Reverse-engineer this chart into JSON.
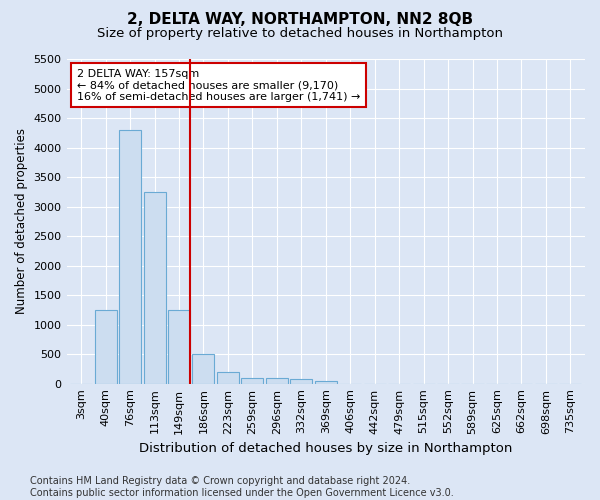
{
  "title": "2, DELTA WAY, NORTHAMPTON, NN2 8QB",
  "subtitle": "Size of property relative to detached houses in Northampton",
  "xlabel": "Distribution of detached houses by size in Northampton",
  "ylabel": "Number of detached properties",
  "categories": [
    "3sqm",
    "40sqm",
    "76sqm",
    "113sqm",
    "149sqm",
    "186sqm",
    "223sqm",
    "259sqm",
    "296sqm",
    "332sqm",
    "369sqm",
    "406sqm",
    "442sqm",
    "479sqm",
    "515sqm",
    "552sqm",
    "589sqm",
    "625sqm",
    "662sqm",
    "698sqm",
    "735sqm"
  ],
  "values": [
    0,
    1250,
    4300,
    3250,
    1250,
    500,
    200,
    100,
    100,
    75,
    50,
    0,
    0,
    0,
    0,
    0,
    0,
    0,
    0,
    0,
    0
  ],
  "bar_color": "#ccddf0",
  "bar_edge_color": "#6aaad4",
  "annotation_text": "2 DELTA WAY: 157sqm\n← 84% of detached houses are smaller (9,170)\n16% of semi-detached houses are larger (1,741) →",
  "annotation_box_color": "#ffffff",
  "annotation_box_edge_color": "#cc0000",
  "property_line_color": "#cc0000",
  "ylim": [
    0,
    5500
  ],
  "yticks": [
    0,
    500,
    1000,
    1500,
    2000,
    2500,
    3000,
    3500,
    4000,
    4500,
    5000,
    5500
  ],
  "footnote": "Contains HM Land Registry data © Crown copyright and database right 2024.\nContains public sector information licensed under the Open Government Licence v3.0.",
  "background_color": "#dce6f5",
  "plot_background_color": "#dce6f5",
  "title_fontsize": 11,
  "subtitle_fontsize": 9.5,
  "xlabel_fontsize": 9.5,
  "ylabel_fontsize": 8.5,
  "tick_fontsize": 8,
  "footnote_fontsize": 7,
  "annotation_fontsize": 8
}
